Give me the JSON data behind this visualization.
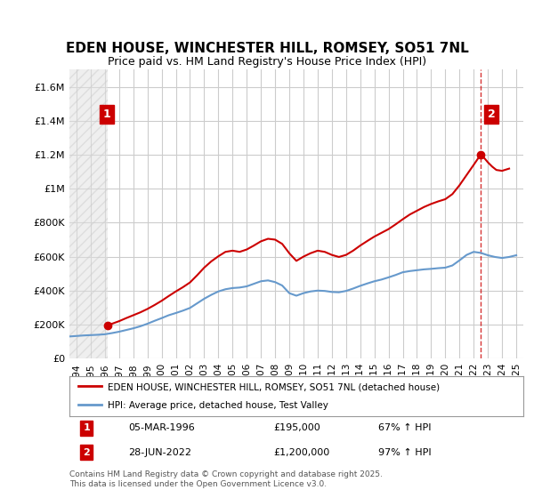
{
  "title": "EDEN HOUSE, WINCHESTER HILL, ROMSEY, SO51 7NL",
  "subtitle": "Price paid vs. HM Land Registry's House Price Index (HPI)",
  "ylabel": "",
  "ylim": [
    0,
    1700000
  ],
  "yticks": [
    0,
    200000,
    400000,
    600000,
    800000,
    1000000,
    1200000,
    1400000,
    1600000
  ],
  "ytick_labels": [
    "£0",
    "£200K",
    "£400K",
    "£600K",
    "£800K",
    "£1M",
    "£1.2M",
    "£1.4M",
    "£1.6M"
  ],
  "xmin": 1993.5,
  "xmax": 2025.5,
  "hpi_color": "#6699cc",
  "price_color": "#cc0000",
  "annotation_box_color": "#cc0000",
  "background_color": "#ffffff",
  "grid_color": "#cccccc",
  "legend_label_price": "EDEN HOUSE, WINCHESTER HILL, ROMSEY, SO51 7NL (detached house)",
  "legend_label_hpi": "HPI: Average price, detached house, Test Valley",
  "transaction1_label": "1",
  "transaction1_date": "05-MAR-1996",
  "transaction1_price": "£195,000",
  "transaction1_hpi": "67% ↑ HPI",
  "transaction1_year": 1996.18,
  "transaction1_value": 195000,
  "transaction2_label": "2",
  "transaction2_date": "28-JUN-2022",
  "transaction2_price": "£1,200,000",
  "transaction2_hpi": "97% ↑ HPI",
  "transaction2_year": 2022.49,
  "transaction2_value": 1200000,
  "footer": "Contains HM Land Registry data © Crown copyright and database right 2025.\nThis data is licensed under the Open Government Licence v3.0.",
  "hpi_data_x": [
    1993.5,
    1994,
    1994.5,
    1995,
    1995.5,
    1996,
    1996.5,
    1997,
    1997.5,
    1998,
    1998.5,
    1999,
    1999.5,
    2000,
    2000.5,
    2001,
    2001.5,
    2002,
    2002.5,
    2003,
    2003.5,
    2004,
    2004.5,
    2005,
    2005.5,
    2006,
    2006.5,
    2007,
    2007.5,
    2008,
    2008.5,
    2009,
    2009.5,
    2010,
    2010.5,
    2011,
    2011.5,
    2012,
    2012.5,
    2013,
    2013.5,
    2014,
    2014.5,
    2015,
    2015.5,
    2016,
    2016.5,
    2017,
    2017.5,
    2018,
    2018.5,
    2019,
    2019.5,
    2020,
    2020.5,
    2021,
    2021.5,
    2022,
    2022.5,
    2023,
    2023.5,
    2024,
    2024.5,
    2025
  ],
  "hpi_data_y": [
    130000,
    133000,
    136000,
    138000,
    140000,
    143000,
    150000,
    158000,
    168000,
    178000,
    190000,
    205000,
    222000,
    238000,
    255000,
    268000,
    282000,
    298000,
    325000,
    352000,
    375000,
    395000,
    408000,
    415000,
    418000,
    425000,
    440000,
    455000,
    460000,
    450000,
    430000,
    385000,
    370000,
    385000,
    395000,
    400000,
    398000,
    392000,
    390000,
    398000,
    412000,
    428000,
    442000,
    455000,
    465000,
    478000,
    492000,
    508000,
    515000,
    520000,
    525000,
    528000,
    532000,
    535000,
    548000,
    578000,
    610000,
    628000,
    622000,
    608000,
    598000,
    592000,
    598000,
    608000
  ],
  "price_data_x": [
    1993.5,
    1994.0,
    1995.0,
    1995.5,
    1996.18,
    1996.5,
    1997.0,
    1997.5,
    1998.0,
    1998.5,
    1999.0,
    1999.5,
    2000.0,
    2000.5,
    2001.0,
    2001.5,
    2002.0,
    2002.5,
    2003.0,
    2003.5,
    2004.0,
    2004.5,
    2005.0,
    2005.5,
    2006.0,
    2006.5,
    2007.0,
    2007.5,
    2008.0,
    2008.5,
    2009.0,
    2009.5,
    2010.0,
    2010.5,
    2011.0,
    2011.5,
    2012.0,
    2012.5,
    2013.0,
    2013.5,
    2014.0,
    2014.5,
    2015.0,
    2015.5,
    2016.0,
    2016.5,
    2017.0,
    2017.5,
    2018.0,
    2018.5,
    2019.0,
    2019.5,
    2020.0,
    2020.5,
    2021.0,
    2021.5,
    2022.0,
    2022.49,
    2022.8,
    2023.0,
    2023.3,
    2023.6,
    2024.0,
    2024.5
  ],
  "price_data_y": [
    null,
    null,
    null,
    null,
    195000,
    205000,
    220000,
    238000,
    255000,
    272000,
    292000,
    315000,
    340000,
    368000,
    395000,
    420000,
    448000,
    490000,
    535000,
    572000,
    602000,
    628000,
    635000,
    628000,
    642000,
    665000,
    690000,
    705000,
    700000,
    675000,
    620000,
    575000,
    600000,
    620000,
    635000,
    628000,
    610000,
    598000,
    610000,
    635000,
    665000,
    692000,
    718000,
    740000,
    762000,
    790000,
    820000,
    848000,
    870000,
    892000,
    910000,
    925000,
    938000,
    968000,
    1020000,
    1080000,
    1140000,
    1200000,
    1175000,
    1155000,
    1130000,
    1110000,
    1105000,
    1118000
  ]
}
